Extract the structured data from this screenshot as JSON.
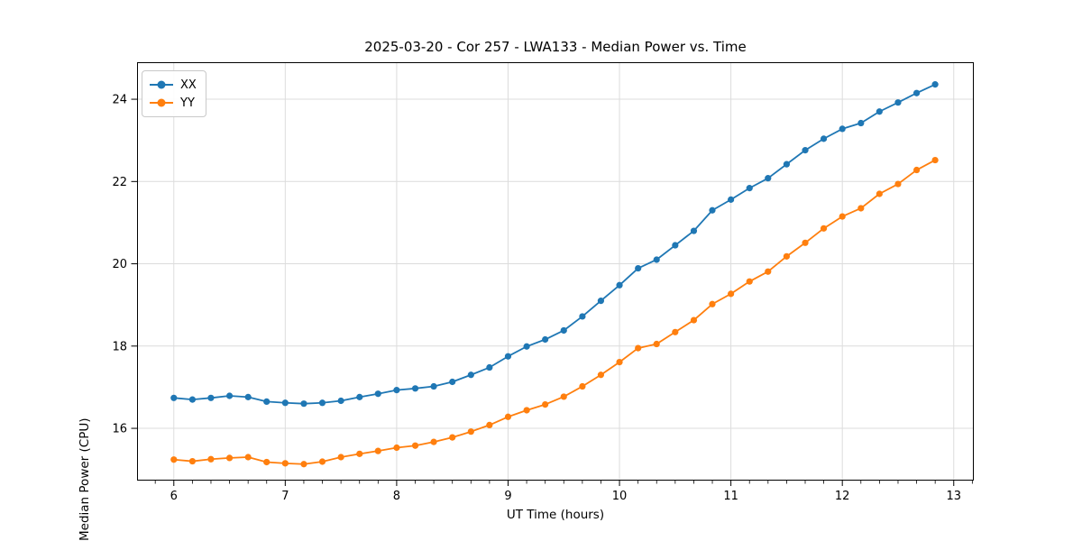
{
  "chart_data": {
    "type": "line",
    "title": "2025-03-20 - Cor 257 - LWA133 - Median Power vs. Time",
    "xlabel": "UT Time (hours)",
    "ylabel": "Median Power (CPU)",
    "xlim": [
      5.67,
      13.18
    ],
    "ylim": [
      14.73,
      24.9
    ],
    "xticks": [
      6,
      7,
      8,
      9,
      10,
      11,
      12,
      13
    ],
    "yticks": [
      16,
      18,
      20,
      22,
      24
    ],
    "x_minor_step": 0.166667,
    "grid": true,
    "legend_position": "upper left",
    "marker": "circle",
    "x": [
      6.0,
      6.167,
      6.333,
      6.5,
      6.667,
      6.833,
      7.0,
      7.167,
      7.333,
      7.5,
      7.667,
      7.833,
      8.0,
      8.167,
      8.333,
      8.5,
      8.667,
      8.833,
      9.0,
      9.167,
      9.333,
      9.5,
      9.667,
      9.833,
      10.0,
      10.167,
      10.333,
      10.5,
      10.667,
      10.833,
      11.0,
      11.167,
      11.333,
      11.5,
      11.667,
      11.833,
      12.0,
      12.167,
      12.333,
      12.5,
      12.667,
      12.833
    ],
    "series": [
      {
        "name": "XX",
        "color": "#1f77b4",
        "values": [
          16.74,
          16.7,
          16.74,
          16.79,
          16.76,
          16.65,
          16.62,
          16.6,
          16.62,
          16.67,
          16.76,
          16.84,
          16.93,
          16.97,
          17.02,
          17.13,
          17.3,
          17.48,
          17.75,
          17.99,
          18.16,
          18.38,
          18.72,
          19.1,
          19.48,
          19.89,
          20.1,
          20.45,
          20.8,
          21.3,
          21.56,
          21.84,
          22.08,
          22.42,
          22.76,
          23.04,
          23.28,
          23.42,
          23.7,
          23.92,
          24.15,
          24.36
        ]
      },
      {
        "name": "YY",
        "color": "#ff7f0e",
        "values": [
          15.24,
          15.2,
          15.25,
          15.28,
          15.3,
          15.18,
          15.15,
          15.13,
          15.19,
          15.3,
          15.38,
          15.45,
          15.53,
          15.58,
          15.67,
          15.78,
          15.92,
          16.08,
          16.28,
          16.44,
          16.58,
          16.77,
          17.02,
          17.3,
          17.61,
          17.95,
          18.05,
          18.34,
          18.63,
          19.02,
          19.27,
          19.57,
          19.81,
          20.18,
          20.51,
          20.86,
          21.15,
          21.35,
          21.7,
          21.94,
          22.28,
          22.52
        ]
      }
    ]
  },
  "colors": {
    "background": "#ffffff",
    "grid": "#dcdcdc",
    "spine": "#000000",
    "tick_label": "#000000"
  }
}
